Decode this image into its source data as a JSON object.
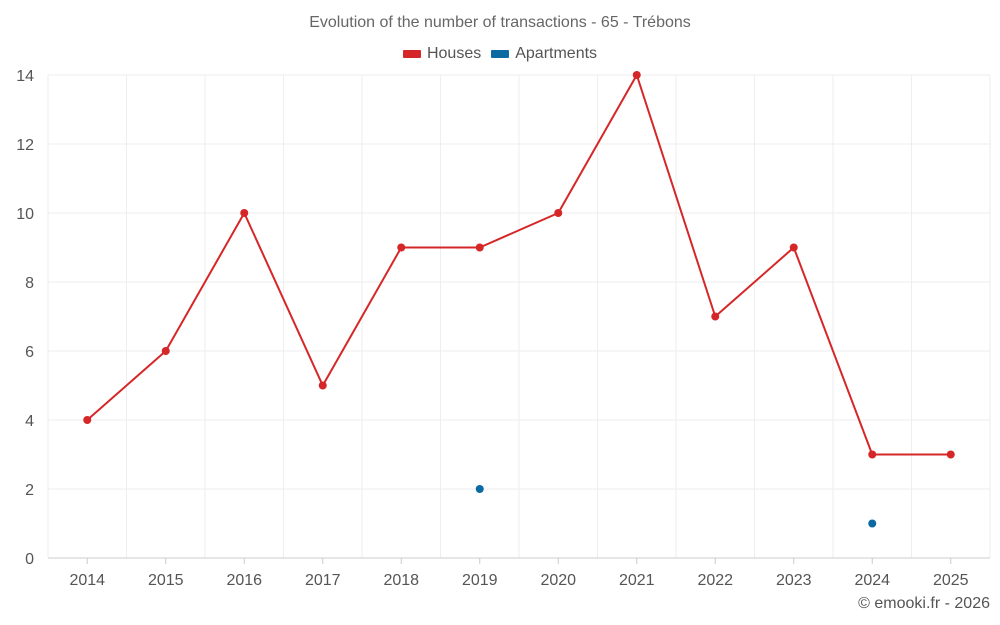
{
  "colors": {
    "houses": "#d62728",
    "apartments": "#0b6aa2",
    "grid": "#eeeeee",
    "axis": "#cccccc",
    "text": "#555555"
  },
  "credit": "© emooki.fr - 2026",
  "chart_data": {
    "type": "line",
    "title": "Evolution of the number of transactions - 65 - Trébons",
    "xlabel": "",
    "ylabel": "",
    "ylim": [
      0,
      14
    ],
    "yticks": [
      0,
      2,
      4,
      6,
      8,
      10,
      12,
      14
    ],
    "categories": [
      "2014",
      "2015",
      "2016",
      "2017",
      "2018",
      "2019",
      "2020",
      "2021",
      "2022",
      "2023",
      "2024",
      "2025"
    ],
    "legend_position": "top-center",
    "series": [
      {
        "name": "Houses",
        "color": "#d62728",
        "line": true,
        "values": [
          4,
          6,
          10,
          5,
          9,
          9,
          10,
          14,
          7,
          9,
          3,
          3
        ]
      },
      {
        "name": "Apartments",
        "color": "#0b6aa2",
        "line": false,
        "values": [
          null,
          null,
          null,
          null,
          null,
          2,
          null,
          null,
          null,
          null,
          1,
          null
        ]
      }
    ]
  }
}
